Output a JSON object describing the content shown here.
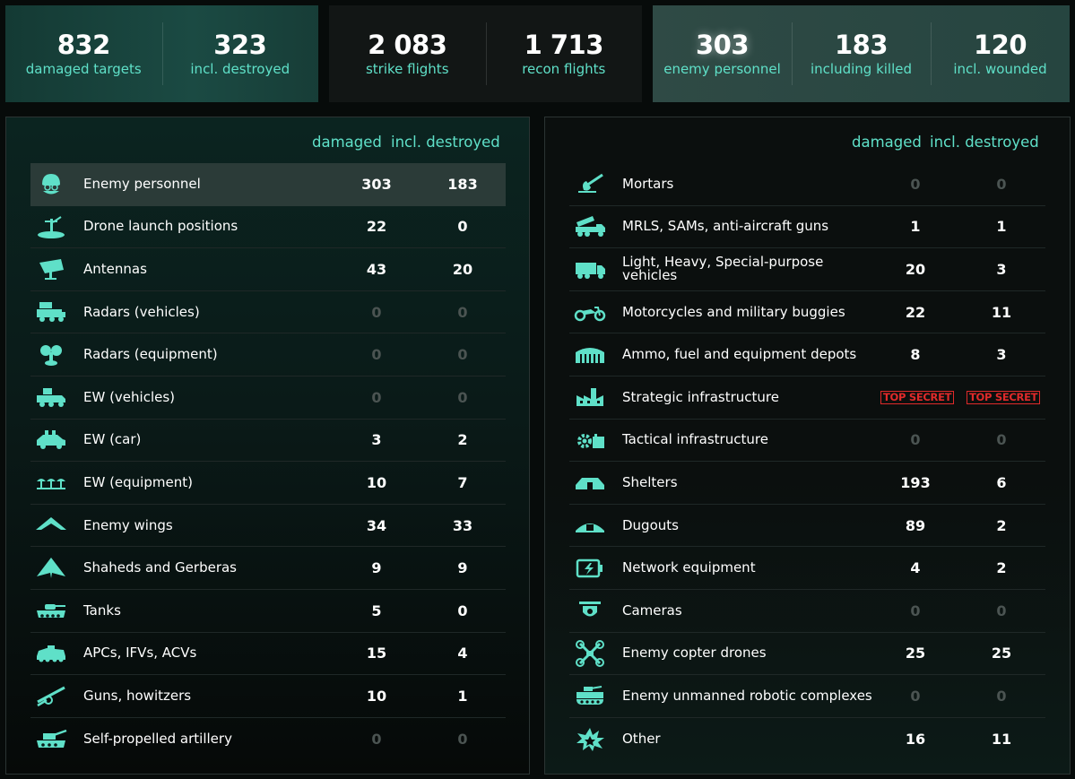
{
  "summary": {
    "card1": [
      {
        "value": "832",
        "label": "damaged targets"
      },
      {
        "value": "323",
        "label": "incl. destroyed"
      }
    ],
    "card2": [
      {
        "value": "2 083",
        "label": "strike flights"
      },
      {
        "value": "1 713",
        "label": "recon flights"
      }
    ],
    "card3": [
      {
        "value": "303",
        "label": "enemy personnel"
      },
      {
        "value": "183",
        "label": "including killed"
      },
      {
        "value": "120",
        "label": "incl. wounded"
      }
    ]
  },
  "columns": {
    "damaged": "damaged",
    "destroyed": "incl. destroyed"
  },
  "left_table": [
    {
      "icon": "soldier-helmet-icon",
      "name": "Enemy personnel",
      "damaged": "303",
      "destroyed": "183"
    },
    {
      "icon": "launch-pad-icon",
      "name": "Drone launch positions",
      "damaged": "22",
      "destroyed": "0"
    },
    {
      "icon": "antenna-dish-icon",
      "name": "Antennas",
      "damaged": "43",
      "destroyed": "20"
    },
    {
      "icon": "radar-vehicle-icon",
      "name": "Radars (vehicles)",
      "damaged": "0",
      "destroyed": "0"
    },
    {
      "icon": "radar-equipment-icon",
      "name": "Radars (equipment)",
      "damaged": "0",
      "destroyed": "0"
    },
    {
      "icon": "ew-vehicle-icon",
      "name": "EW (vehicles)",
      "damaged": "0",
      "destroyed": "0"
    },
    {
      "icon": "ew-car-icon",
      "name": "EW (car)",
      "damaged": "3",
      "destroyed": "2"
    },
    {
      "icon": "ew-equipment-icon",
      "name": "EW (equipment)",
      "damaged": "10",
      "destroyed": "7"
    },
    {
      "icon": "flying-wing-icon",
      "name": "Enemy wings",
      "damaged": "34",
      "destroyed": "33"
    },
    {
      "icon": "shahed-drone-icon",
      "name": "Shaheds and Gerberas",
      "damaged": "9",
      "destroyed": "9"
    },
    {
      "icon": "tank-icon",
      "name": "Tanks",
      "damaged": "5",
      "destroyed": "0"
    },
    {
      "icon": "apc-icon",
      "name": "APCs, IFVs, ACVs",
      "damaged": "15",
      "destroyed": "4"
    },
    {
      "icon": "howitzer-icon",
      "name": "Guns, howitzers",
      "damaged": "10",
      "destroyed": "1"
    },
    {
      "icon": "self-propelled-artillery-icon",
      "name": "Self-propelled artillery",
      "damaged": "0",
      "destroyed": "0"
    }
  ],
  "right_table": [
    {
      "icon": "mortar-icon",
      "name": "Mortars",
      "damaged": "0",
      "destroyed": "0"
    },
    {
      "icon": "mrls-truck-icon",
      "name": "MRLS, SAMs, anti-aircraft guns",
      "damaged": "1",
      "destroyed": "1"
    },
    {
      "icon": "truck-icon",
      "name": "Light, Heavy, Special-purpose vehicles",
      "damaged": "20",
      "destroyed": "3"
    },
    {
      "icon": "motorcycle-icon",
      "name": "Motorcycles and military buggies",
      "damaged": "22",
      "destroyed": "11"
    },
    {
      "icon": "hangar-depot-icon",
      "name": "Ammo, fuel and equipment depots",
      "damaged": "8",
      "destroyed": "3"
    },
    {
      "icon": "factory-icon",
      "name": "Strategic infrastructure",
      "damaged": "TOP SECRET",
      "destroyed": "TOP SECRET"
    },
    {
      "icon": "gear-infrastructure-icon",
      "name": "Tactical infrastructure",
      "damaged": "0",
      "destroyed": "0"
    },
    {
      "icon": "shelter-icon",
      "name": "Shelters",
      "damaged": "193",
      "destroyed": "6"
    },
    {
      "icon": "dugout-icon",
      "name": "Dugouts",
      "damaged": "89",
      "destroyed": "2"
    },
    {
      "icon": "network-equipment-icon",
      "name": "Network equipment",
      "damaged": "4",
      "destroyed": "2"
    },
    {
      "icon": "camera-icon",
      "name": "Cameras",
      "damaged": "0",
      "destroyed": "0"
    },
    {
      "icon": "copter-drone-icon",
      "name": "Enemy copter drones",
      "damaged": "25",
      "destroyed": "25"
    },
    {
      "icon": "robotic-complex-icon",
      "name": "Enemy unmanned robotic complexes",
      "damaged": "0",
      "destroyed": "0"
    },
    {
      "icon": "explosion-icon",
      "name": "Other",
      "damaged": "16",
      "destroyed": "11"
    }
  ],
  "colors": {
    "accent": "#5fe0c8",
    "secret": "#e02a2a",
    "zero": "#4b5452"
  }
}
